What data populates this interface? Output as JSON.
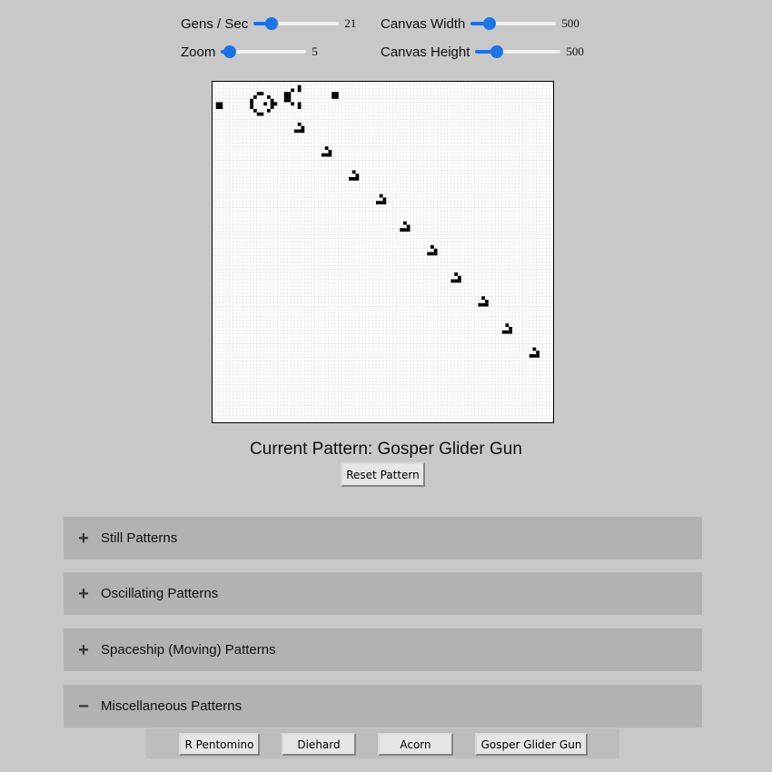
{
  "controls": {
    "gens_per_sec": {
      "label": "Gens / Sec",
      "value": "21",
      "level": 0.21
    },
    "canvas_width": {
      "label": "Canvas Width",
      "value": "500",
      "level": 0.22
    },
    "zoom": {
      "label": "Zoom",
      "value": "5",
      "level": 0.1
    },
    "canvas_height": {
      "label": "Canvas Height",
      "value": "500",
      "level": 0.25
    }
  },
  "current_pattern": {
    "text": "Current Pattern: Gosper Glider Gun"
  },
  "reset_button": {
    "label": "Reset Pattern"
  },
  "accordions": [
    {
      "label": "Still Patterns",
      "icon": "+",
      "icon_name": "plus-icon",
      "expanded": false
    },
    {
      "label": "Oscillating Patterns",
      "icon": "+",
      "icon_name": "plus-icon",
      "expanded": false
    },
    {
      "label": "Spaceship (Moving) Patterns",
      "icon": "+",
      "icon_name": "plus-icon",
      "expanded": false
    },
    {
      "label": "Miscellaneous Patterns",
      "icon": "−",
      "icon_name": "minus-icon",
      "expanded": true
    }
  ],
  "misc_patterns": [
    "R Pentomino",
    "Diehard",
    "Acorn",
    "Gosper Glider Gun"
  ],
  "grid": {
    "cols": 100,
    "rows": 100,
    "live_color": "#000000",
    "grid_color": "#e3e3e3",
    "live_cells": [
      [
        1,
        6
      ],
      [
        2,
        6
      ],
      [
        1,
        7
      ],
      [
        2,
        7
      ],
      [
        11,
        5
      ],
      [
        11,
        6
      ],
      [
        11,
        7
      ],
      [
        12,
        4
      ],
      [
        12,
        8
      ],
      [
        13,
        3
      ],
      [
        13,
        9
      ],
      [
        14,
        3
      ],
      [
        14,
        9
      ],
      [
        15,
        6
      ],
      [
        16,
        4
      ],
      [
        16,
        8
      ],
      [
        17,
        5
      ],
      [
        17,
        6
      ],
      [
        17,
        7
      ],
      [
        18,
        6
      ],
      [
        21,
        3
      ],
      [
        21,
        4
      ],
      [
        21,
        5
      ],
      [
        22,
        3
      ],
      [
        22,
        4
      ],
      [
        22,
        5
      ],
      [
        23,
        2
      ],
      [
        23,
        6
      ],
      [
        25,
        1
      ],
      [
        25,
        2
      ],
      [
        25,
        6
      ],
      [
        25,
        7
      ],
      [
        35,
        3
      ],
      [
        36,
        3
      ],
      [
        35,
        4
      ],
      [
        36,
        4
      ],
      [
        25,
        12
      ],
      [
        26,
        13
      ],
      [
        26,
        14
      ],
      [
        25,
        14
      ],
      [
        24,
        14
      ],
      [
        33,
        19
      ],
      [
        34,
        20
      ],
      [
        34,
        21
      ],
      [
        33,
        21
      ],
      [
        32,
        21
      ],
      [
        41,
        26
      ],
      [
        42,
        27
      ],
      [
        42,
        28
      ],
      [
        41,
        28
      ],
      [
        40,
        28
      ],
      [
        49,
        33
      ],
      [
        50,
        34
      ],
      [
        50,
        35
      ],
      [
        49,
        35
      ],
      [
        48,
        35
      ],
      [
        56,
        41
      ],
      [
        57,
        42
      ],
      [
        57,
        43
      ],
      [
        56,
        43
      ],
      [
        55,
        43
      ],
      [
        64,
        48
      ],
      [
        65,
        49
      ],
      [
        65,
        50
      ],
      [
        64,
        50
      ],
      [
        63,
        50
      ],
      [
        71,
        56
      ],
      [
        72,
        57
      ],
      [
        72,
        58
      ],
      [
        71,
        58
      ],
      [
        70,
        58
      ],
      [
        79,
        63
      ],
      [
        80,
        64
      ],
      [
        80,
        65
      ],
      [
        79,
        65
      ],
      [
        78,
        65
      ],
      [
        86,
        71
      ],
      [
        87,
        72
      ],
      [
        87,
        73
      ],
      [
        86,
        73
      ],
      [
        85,
        73
      ],
      [
        94,
        78
      ],
      [
        95,
        79
      ],
      [
        95,
        80
      ],
      [
        94,
        80
      ],
      [
        93,
        80
      ]
    ]
  }
}
